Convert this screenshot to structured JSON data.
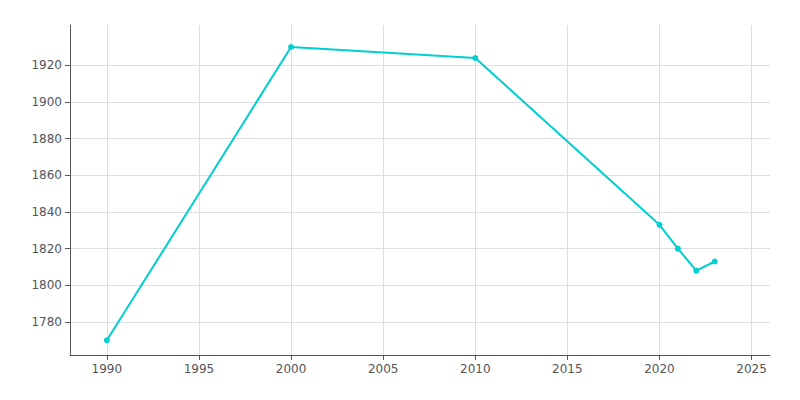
{
  "chart_data": {
    "type": "line",
    "x": [
      1990,
      2000,
      2010,
      2020,
      2021,
      2022,
      2023
    ],
    "values": [
      1770,
      1930,
      1924,
      1833,
      1820,
      1808,
      1813
    ],
    "color": "#00CED1",
    "marker": "circle",
    "xlim": [
      1988,
      2026
    ],
    "ylim": [
      1762,
      1942
    ],
    "xticks": [
      1990,
      1995,
      2000,
      2005,
      2010,
      2015,
      2020,
      2025
    ],
    "yticks": [
      1780,
      1800,
      1820,
      1840,
      1860,
      1880,
      1900,
      1920
    ],
    "grid": true
  }
}
